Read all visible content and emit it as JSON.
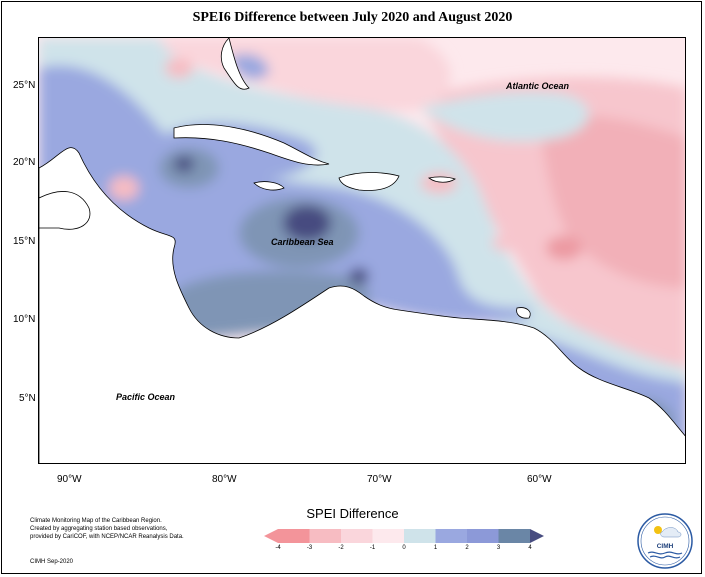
{
  "title": "SPEI6 Difference between July 2020 and August 2020",
  "map": {
    "lat_labels": [
      "25°N",
      "20°N",
      "15°N",
      "10°N",
      "5°N"
    ],
    "lon_labels": [
      "90°W",
      "80°W",
      "70°W",
      "60°W"
    ],
    "ocean_labels": {
      "atlantic": "Atlantic Ocean",
      "caribbean": "Caribbean Sea",
      "pacific": "Pacific Ocean"
    }
  },
  "legend": {
    "title": "SPEI Difference",
    "ticks": [
      "-4",
      "-3",
      "-2",
      "-1",
      "0",
      "1",
      "2",
      "3",
      "4"
    ],
    "colors": [
      "#f3949a",
      "#f7bcc2",
      "#fad6dc",
      "#fde9ed",
      "#cfe3ea",
      "#9aa8e0",
      "#8c99d8",
      "#6a86a6",
      "#474c80"
    ]
  },
  "credits": {
    "lines": [
      "Climate Monitoring Map of the Caribbean Region.",
      "Created by aggregating station based observations,",
      "provided by CariCOF, with NCEP/NCAR Reanalysis Data."
    ],
    "date": "CIMH Sep-2020"
  },
  "logo": {
    "text": "CIMH"
  }
}
